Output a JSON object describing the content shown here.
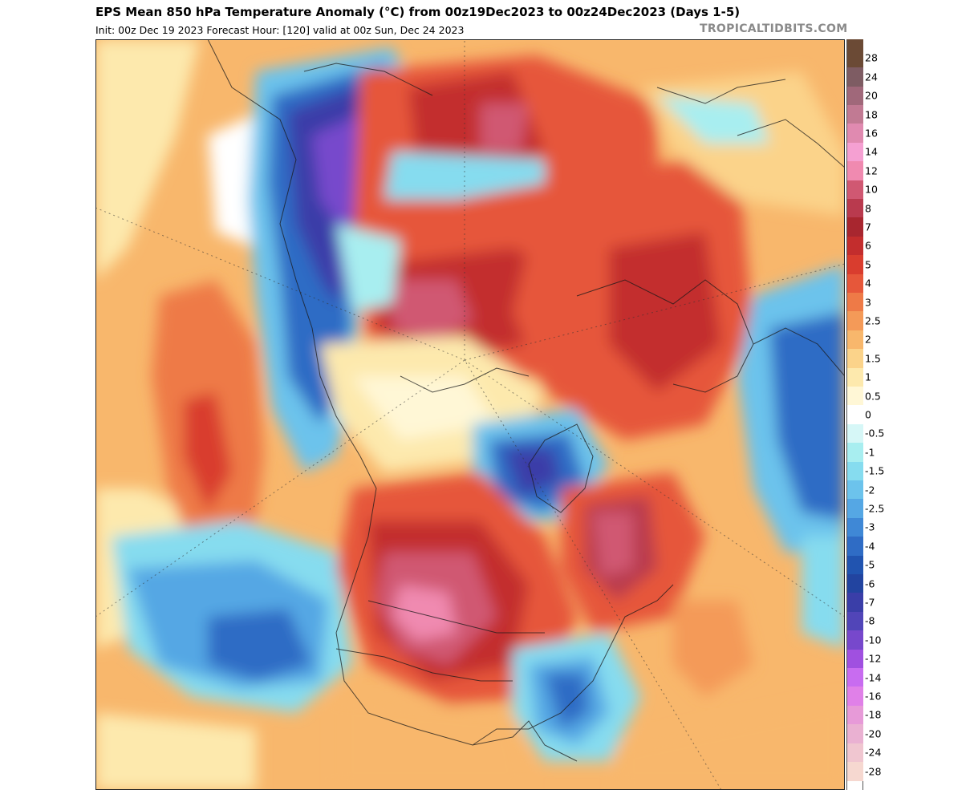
{
  "header": {
    "title": "EPS Mean 850 hPa Temperature Anomaly (°C) from 00z19Dec2023 to 00z24Dec2023 (Days 1-5)",
    "subtitle": "Init: 00z Dec 19 2023   Forecast Hour: [120]   valid at 00z Sun, Dec 24 2023",
    "brand": "TROPICALTIDBITS.COM"
  },
  "legend": {
    "unit": "°C",
    "levels": [
      {
        "label": "28",
        "color": "#6b4a35"
      },
      {
        "label": "24",
        "color": "#7e5c63"
      },
      {
        "label": "20",
        "color": "#a0687a"
      },
      {
        "label": "18",
        "color": "#c17a93"
      },
      {
        "label": "16",
        "color": "#e08ab0"
      },
      {
        "label": "14",
        "color": "#f5a0d2"
      },
      {
        "label": "12",
        "color": "#f08ab0"
      },
      {
        "label": "10",
        "color": "#d05872"
      },
      {
        "label": "8",
        "color": "#b93a4e"
      },
      {
        "label": "7",
        "color": "#a8262f"
      },
      {
        "label": "6",
        "color": "#c32d2d"
      },
      {
        "label": "5",
        "color": "#d93d2e"
      },
      {
        "label": "4",
        "color": "#e6573a"
      },
      {
        "label": "3",
        "color": "#ee7a47"
      },
      {
        "label": "2.5",
        "color": "#f49a58"
      },
      {
        "label": "2",
        "color": "#f8b76c"
      },
      {
        "label": "1.5",
        "color": "#fbd38a"
      },
      {
        "label": "1",
        "color": "#fde9ad"
      },
      {
        "label": "0.5",
        "color": "#fff7d6"
      },
      {
        "label": "0",
        "color": "#ffffff"
      },
      {
        "label": "-0.5",
        "color": "#d6f7f7"
      },
      {
        "label": "-1",
        "color": "#a8eef0"
      },
      {
        "label": "-1.5",
        "color": "#86dcef"
      },
      {
        "label": "-2",
        "color": "#6cc3ec"
      },
      {
        "label": "-2.5",
        "color": "#55a7e4"
      },
      {
        "label": "-3",
        "color": "#3f88d6"
      },
      {
        "label": "-4",
        "color": "#2f6cc5"
      },
      {
        "label": "-5",
        "color": "#2154b0"
      },
      {
        "label": "-6",
        "color": "#2244a0"
      },
      {
        "label": "-7",
        "color": "#3a3ea8"
      },
      {
        "label": "-8",
        "color": "#5145b8"
      },
      {
        "label": "-10",
        "color": "#7748cc"
      },
      {
        "label": "-12",
        "color": "#a050e0"
      },
      {
        "label": "-14",
        "color": "#c86cf0"
      },
      {
        "label": "-16",
        "color": "#e080e8"
      },
      {
        "label": "-18",
        "color": "#e79ad8"
      },
      {
        "label": "-20",
        "color": "#eab1d2"
      },
      {
        "label": "-24",
        "color": "#f0c6d0"
      },
      {
        "label": "-28",
        "color": "#f6d8d0"
      }
    ]
  },
  "map": {
    "projection": "north-polar-stereographic",
    "field": "850 hPa temperature anomaly",
    "features": [
      "north-america-warm-anomaly",
      "siberia-cold-anomaly",
      "pacific-cold-anomaly",
      "atlantic-cold-anomaly",
      "arctic-warm-anomaly"
    ]
  }
}
